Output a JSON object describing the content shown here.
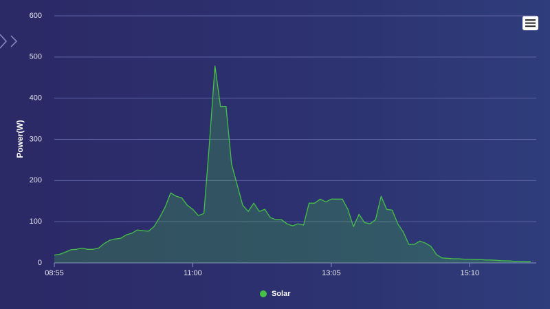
{
  "chart_data": {
    "type": "area",
    "y_label": "Power(W)",
    "x": [
      "08:55",
      "09:00",
      "09:05",
      "09:10",
      "09:15",
      "09:20",
      "09:25",
      "09:30",
      "09:35",
      "09:40",
      "09:45",
      "09:50",
      "09:55",
      "10:00",
      "10:05",
      "10:10",
      "10:15",
      "10:20",
      "10:25",
      "10:30",
      "10:35",
      "10:40",
      "10:45",
      "10:50",
      "10:55",
      "11:00",
      "11:05",
      "11:10",
      "11:15",
      "11:20",
      "11:25",
      "11:30",
      "11:35",
      "11:40",
      "11:45",
      "11:50",
      "11:55",
      "12:00",
      "12:05",
      "12:10",
      "12:15",
      "12:20",
      "12:25",
      "12:30",
      "12:35",
      "12:40",
      "12:45",
      "12:50",
      "12:55",
      "13:00",
      "13:05",
      "13:10",
      "13:15",
      "13:20",
      "13:25",
      "13:30",
      "13:35",
      "13:40",
      "13:45",
      "13:50",
      "13:55",
      "14:00",
      "14:05",
      "14:10",
      "14:15",
      "14:20",
      "14:25",
      "14:30",
      "14:35",
      "14:40",
      "14:45",
      "14:50",
      "14:55",
      "15:00",
      "15:05",
      "15:10",
      "15:15",
      "15:20",
      "15:25",
      "15:30",
      "15:35",
      "15:40",
      "15:45",
      "15:50",
      "15:55",
      "16:00",
      "16:05"
    ],
    "series": [
      {
        "name": "Solar",
        "color": "#45c245",
        "values": [
          19,
          21,
          26,
          32,
          33,
          36,
          33,
          33,
          36,
          47,
          55,
          58,
          60,
          68,
          72,
          80,
          78,
          77,
          88,
          110,
          135,
          170,
          162,
          158,
          140,
          130,
          115,
          120,
          290,
          478,
          380,
          380,
          240,
          190,
          140,
          125,
          145,
          125,
          130,
          110,
          105,
          105,
          95,
          90,
          95,
          92,
          145,
          145,
          155,
          148,
          155,
          155,
          155,
          130,
          88,
          118,
          98,
          95,
          105,
          162,
          130,
          128,
          95,
          75,
          45,
          45,
          53,
          48,
          40,
          20,
          12,
          11,
          10,
          10,
          9,
          9,
          8,
          8,
          7,
          7,
          6,
          5,
          5,
          4,
          4,
          3,
          3
        ]
      }
    ],
    "xlim": [
      "08:55",
      "16:10"
    ],
    "xticks": [
      "08:55",
      "11:00",
      "13:05",
      "15:10"
    ],
    "ylim": [
      0,
      600
    ],
    "yticks": [
      0,
      100,
      200,
      300,
      400,
      500,
      600
    ],
    "grid": true
  }
}
